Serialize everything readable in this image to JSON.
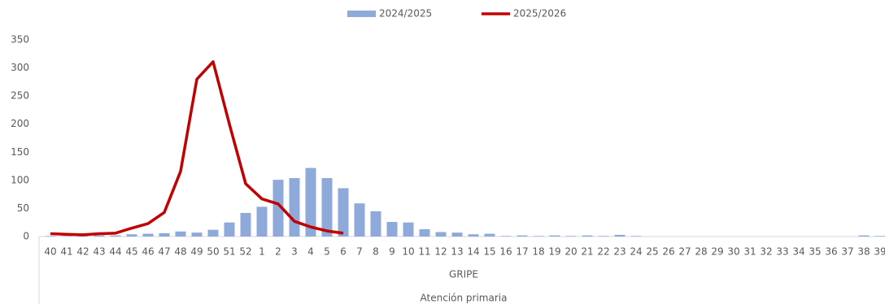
{
  "chart_data": {
    "type": "bar_line",
    "categories": [
      "40",
      "41",
      "42",
      "43",
      "44",
      "45",
      "46",
      "47",
      "48",
      "49",
      "50",
      "51",
      "52",
      "1",
      "2",
      "3",
      "4",
      "5",
      "6",
      "7",
      "8",
      "9",
      "10",
      "11",
      "12",
      "13",
      "14",
      "15",
      "16",
      "17",
      "18",
      "19",
      "20",
      "21",
      "22",
      "23",
      "24",
      "25",
      "26",
      "27",
      "28",
      "29",
      "30",
      "31",
      "32",
      "33",
      "34",
      "35",
      "36",
      "37",
      "38",
      "39"
    ],
    "series": [
      {
        "name": "2024/2025",
        "type": "bar",
        "color": "#8eaadb",
        "values": [
          1,
          1,
          1,
          2,
          2,
          4,
          5,
          6,
          9,
          7,
          12,
          25,
          42,
          53,
          101,
          104,
          122,
          104,
          86,
          59,
          45,
          26,
          25,
          13,
          8,
          7,
          4,
          5,
          1,
          2,
          1,
          2,
          1,
          2,
          1,
          3,
          1,
          0,
          0,
          0,
          0,
          0,
          0,
          0,
          0,
          0,
          0,
          0,
          0,
          0,
          2,
          1
        ]
      },
      {
        "name": "2025/2026",
        "type": "line",
        "color": "#c00000",
        "values": [
          5,
          4,
          3,
          5,
          6,
          15,
          23,
          43,
          116,
          280,
          311,
          200,
          94,
          67,
          58,
          27,
          17,
          10,
          6,
          null,
          null,
          null,
          null,
          null,
          null,
          null,
          null,
          null,
          null,
          null,
          null,
          null,
          null,
          null,
          null,
          null,
          null,
          null,
          null,
          null,
          null,
          null,
          null,
          null,
          null,
          null,
          null,
          null,
          null,
          null,
          null,
          null
        ]
      }
    ],
    "x_groups": [
      "GRIPE",
      "Atención primaria"
    ],
    "ylim": [
      0,
      350
    ],
    "yticks": [
      0,
      50,
      100,
      150,
      200,
      250,
      300,
      350
    ],
    "grid": false,
    "legend": "top"
  }
}
